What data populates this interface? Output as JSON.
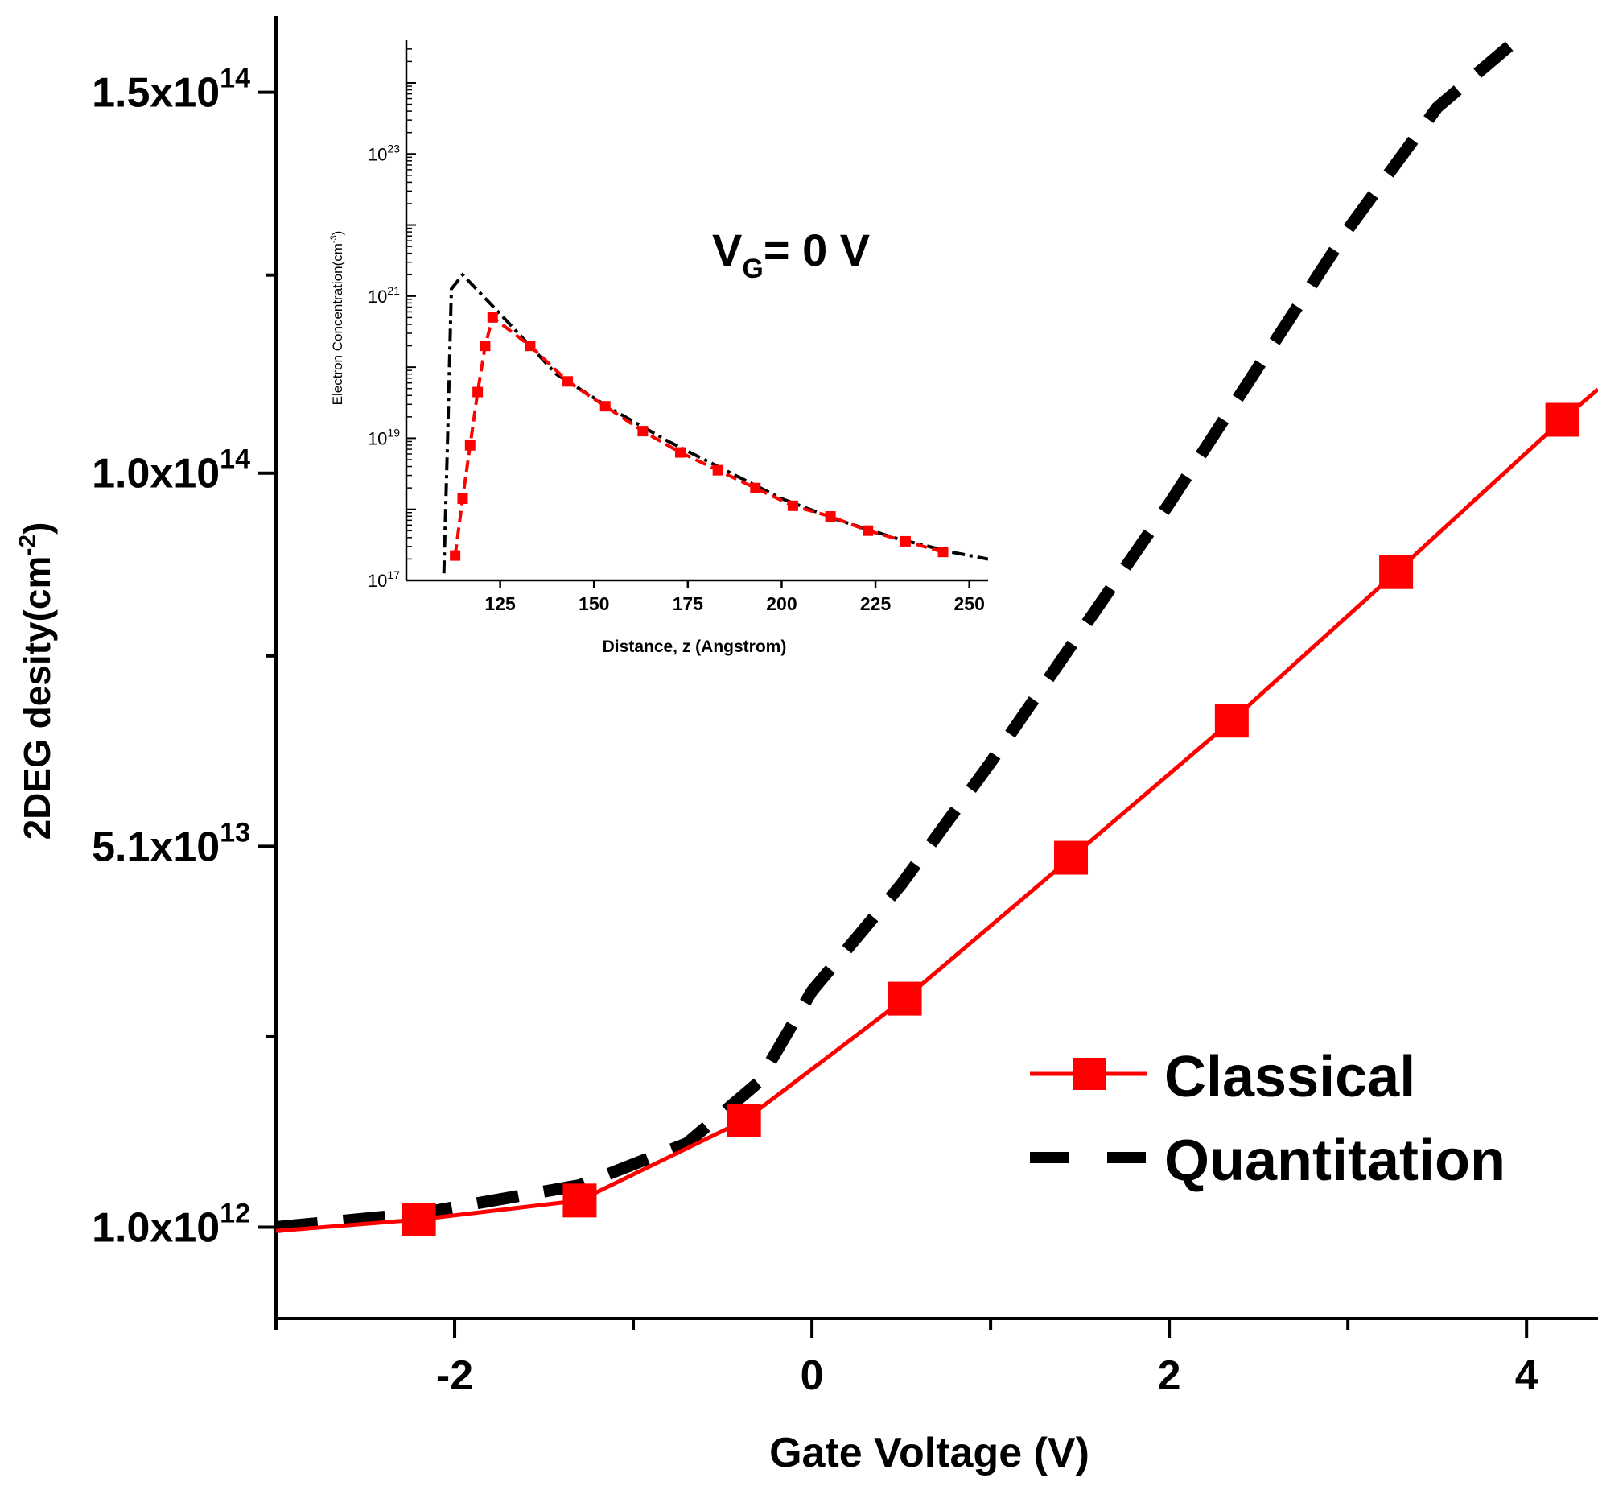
{
  "chart_data": [
    {
      "type": "line",
      "xlabel": "Gate Voltage (V)",
      "ylabel_main": "2DEG desity(cm",
      "ylabel_exp": "-2",
      "ylabel_close": ")",
      "xlim": [
        -3.0,
        4.4
      ],
      "ylim": [
        -11000000000000.0,
        160000000000000.0
      ],
      "x_ticks": [
        {
          "value": -2,
          "label": "-2"
        },
        {
          "value": 0,
          "label": "0"
        },
        {
          "value": 2,
          "label": "2"
        },
        {
          "value": 4,
          "label": "4"
        }
      ],
      "x_minor_ticks": [
        -3,
        -1,
        1,
        3
      ],
      "y_ticks": [
        {
          "value": 1000000000000.0,
          "mant": "1.0x10",
          "exp": "12"
        },
        {
          "value": 51000000000000.0,
          "mant": "5.1x10",
          "exp": "13"
        },
        {
          "value": 100000000000000.0,
          "mant": "1.0x10",
          "exp": "14"
        },
        {
          "value": 150000000000000.0,
          "mant": "1.5x10",
          "exp": "14"
        }
      ],
      "y_minor_ticks": [
        26000000000000.0,
        76000000000000.0,
        126000000000000.0
      ],
      "series": [
        {
          "name": "Classical",
          "color": "#ff0000",
          "style": "solid-square-markers",
          "points": [
            [
              -3.0,
              500000000000.0
            ],
            [
              -2.2,
              2000000000000.0
            ],
            [
              -1.3,
              4500000000000.0
            ],
            [
              -0.38,
              15000000000000.0
            ],
            [
              0.52,
              31000000000000.0
            ],
            [
              1.45,
              49500000000000.0
            ],
            [
              2.35,
              67500000000000.0
            ],
            [
              3.27,
              87000000000000.0
            ],
            [
              4.2,
              107000000000000.0
            ],
            [
              4.4,
              111000000000000.0
            ]
          ],
          "markers": [
            [
              -2.2,
              2000000000000.0
            ],
            [
              -1.3,
              4500000000000.0
            ],
            [
              -0.38,
              15000000000000.0
            ],
            [
              0.52,
              31000000000000.0
            ],
            [
              1.45,
              49500000000000.0
            ],
            [
              2.35,
              67500000000000.0
            ],
            [
              3.27,
              87000000000000.0
            ],
            [
              4.2,
              107000000000000.0
            ]
          ]
        },
        {
          "name": "Quantitation",
          "color": "#000000",
          "style": "dashed",
          "points": [
            [
              -3.0,
              1000000000000.0
            ],
            [
              -2.2,
              2800000000000.0
            ],
            [
              -1.3,
              6500000000000.0
            ],
            [
              -0.7,
              12000000000000.0
            ],
            [
              -0.3,
              20000000000000.0
            ],
            [
              0.0,
              32000000000000.0
            ],
            [
              0.5,
              46000000000000.0
            ],
            [
              1.0,
              62000000000000.0
            ],
            [
              1.5,
              79000000000000.0
            ],
            [
              2.0,
              96000000000000.0
            ],
            [
              2.5,
              114000000000000.0
            ],
            [
              3.0,
              132000000000000.0
            ],
            [
              3.5,
              148000000000000.0
            ],
            [
              4.0,
              158000000000000.0
            ]
          ]
        }
      ],
      "legend": {
        "position": "bottom-right",
        "entries": [
          "Classical",
          "Quantitation"
        ]
      }
    },
    {
      "type": "line",
      "role": "inset",
      "annotation_main": "V",
      "annotation_sub": "G",
      "annotation_rest": "= 0 V",
      "xlabel": "Distance, z (Angstrom)",
      "ylabel_main": "Electron Concentration(cm",
      "ylabel_exp": "-3",
      "ylabel_close": ")",
      "yscale": "log",
      "xlim": [
        100,
        255
      ],
      "ylim_log10": [
        17,
        24.6
      ],
      "x_ticks": [
        125,
        150,
        175,
        200,
        225,
        250
      ],
      "y_ticks": [
        {
          "exp_value": 17,
          "base": "10",
          "exp": "17"
        },
        {
          "exp_value": 19,
          "base": "10",
          "exp": "19"
        },
        {
          "exp_value": 21,
          "base": "10",
          "exp": "21"
        },
        {
          "exp_value": 23,
          "base": "10",
          "exp": "23"
        }
      ],
      "series": [
        {
          "name": "Classical",
          "color": "#ff0000",
          "style": "dashed-square-markers",
          "points_log10": [
            [
              113,
              17.35
            ],
            [
              115,
              18.15
            ],
            [
              117,
              18.9
            ],
            [
              119,
              19.65
            ],
            [
              121,
              20.3
            ],
            [
              123,
              20.7
            ],
            [
              133,
              20.3
            ],
            [
              143,
              19.8
            ],
            [
              153,
              19.45
            ],
            [
              163,
              19.1
            ],
            [
              173,
              18.8
            ],
            [
              183,
              18.55
            ],
            [
              193,
              18.3
            ],
            [
              203,
              18.05
            ],
            [
              213,
              17.9
            ],
            [
              223,
              17.7
            ],
            [
              233,
              17.55
            ],
            [
              243,
              17.4
            ]
          ]
        },
        {
          "name": "Quantitation",
          "color": "#000000",
          "style": "dash-dot",
          "points_log10": [
            [
              110,
              17.1
            ],
            [
              111,
              19.0
            ],
            [
              112,
              21.1
            ],
            [
              115,
              21.3
            ],
            [
              125,
              20.75
            ],
            [
              140,
              19.9
            ],
            [
              155,
              19.4
            ],
            [
              170,
              18.95
            ],
            [
              185,
              18.55
            ],
            [
              200,
              18.15
            ],
            [
              215,
              17.85
            ],
            [
              230,
              17.6
            ],
            [
              245,
              17.4
            ],
            [
              255,
              17.3
            ]
          ]
        }
      ]
    }
  ]
}
